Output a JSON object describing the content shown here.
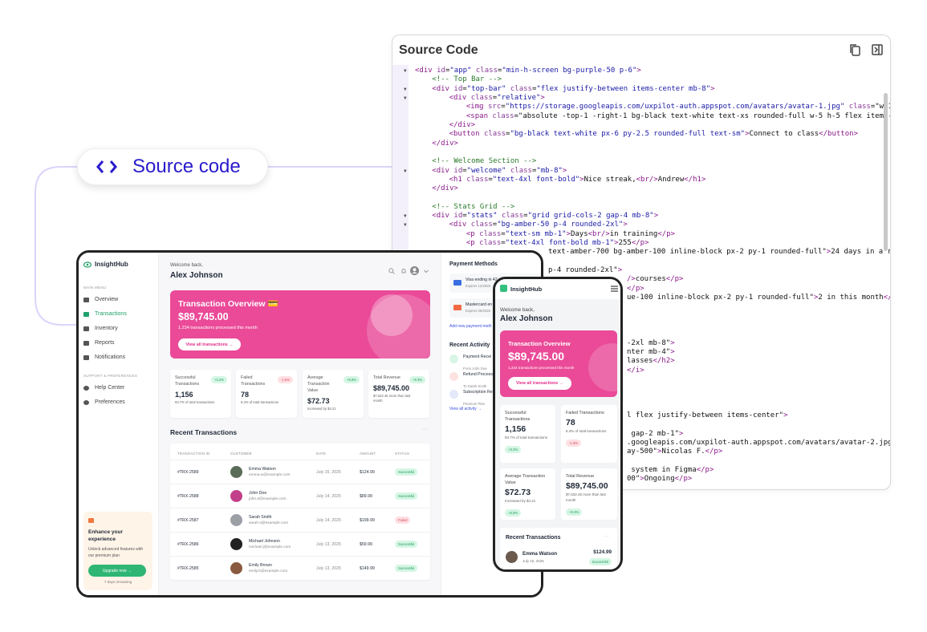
{
  "pill": {
    "label": "Source code",
    "icon": "code-brackets-icon"
  },
  "code_panel": {
    "title": "Source Code",
    "actions": [
      "copy-icon",
      "toggle-panel-icon"
    ],
    "lines": [
      "<div id=\"app\" class=\"min-h-screen bg-purple-50 p-6\">",
      "<!-- Top Bar -->",
      "<div id=\"top-bar\" class=\"flex justify-between items-center mb-8\">",
      "<div class=\"relative\">",
      "<img src=\"https://storage.googleapis.com/uxpilot-auth.appspot.com/avatars/avatar-1.jpg\" class=\"w-1",
      "<span class=\"absolute -top-1 -right-1 bg-black text-white text-xs rounded-full w-5 h-5 flex items-",
      "</div>",
      "<button class=\"bg-black text-white px-6 py-2.5 rounded-full text-sm\">Connect to class</button>",
      "</div>",
      "",
      "<!-- Welcome Section -->",
      "<div id=\"welcome\" class=\"mb-8\">",
      "<h1 class=\"text-4xl font-bold\">Nice streak,<br/>Andrew</h1>",
      "</div>",
      "",
      "<!-- Stats Grid -->",
      "<div id=\"stats\" class=\"grid grid-cols-2 gap-4 mb-8\">",
      "<div class=\"bg-amber-50 p-4 rounded-2xl\">",
      "<p class=\"text-sm mb-1\">Days<br/>in training</p>",
      "<p class=\"text-4xl font-bold mb-1\">255</p>",
      "text-amber-700 bg-amber-100 inline-block px-2 py-1 rounded-full\">24 days in a ro",
      "",
      "p-4 rounded-2xl\">",
      "/>courses</p>",
      "</p>",
      "ue-100 inline-block px-2 py-1 rounded-full\">2 in this month</p",
      "",
      "",
      "",
      "",
      "-2xl mb-8\">",
      "nter mb-4\">",
      "lasses</h2>",
      "</i>",
      "",
      "",
      "",
      "",
      "l flex justify-between items-center\">",
      "",
      " gap-2 mb-1\">",
      ".googleapis.com/uxpilot-auth.appspot.com/avatars/avatar-2.jpg\"",
      "ay-500\">Nicolas F.</p>",
      "",
      " system in Figma</p>",
      "00\">Ongoing</p>"
    ]
  },
  "desktop": {
    "brand": "InsightHub",
    "main_menu_label": "MAIN MENU",
    "nav": [
      "Overview",
      "Transactions",
      "Inventory",
      "Reports",
      "Notifications"
    ],
    "support_label": "SUPPORT & PREFERENCES",
    "support_nav": [
      "Help Center",
      "Preferences"
    ],
    "active_nav": "Transactions",
    "upgrade": {
      "title": "Enhance your experience",
      "text": "Unlock advanced features with our premium plan",
      "button": "Upgrade now →",
      "note": "7 days remaining"
    },
    "welcome": "Welcome back,",
    "user": "Alex Johnson",
    "hero": {
      "title": "Transaction Overview 💳",
      "amount": "$89,745.00",
      "subtitle": "1,234 transactions processed this month",
      "button": "View all transactions →"
    },
    "stats": [
      {
        "label": "Successful Transactions",
        "value": "1,156",
        "sub": "93.7% of total transactions",
        "badge": "+3.2%",
        "tone": "g"
      },
      {
        "label": "Failed Transactions",
        "value": "78",
        "sub": "6.3% of total transactions",
        "badge": "-1.5%",
        "tone": "r"
      },
      {
        "label": "Average Transaction Value",
        "value": "$72.73",
        "sub": "Increased by $4.21",
        "badge": "+5.8%",
        "tone": "g"
      },
      {
        "label": "Total Revenue",
        "value": "$89,745.00",
        "sub": "$7,632.45 more than last month",
        "badge": "+9.3%",
        "tone": "g"
      }
    ],
    "recent_title": "Recent Transactions",
    "more": "···",
    "columns": [
      "TRANSACTION ID",
      "CUSTOMER",
      "DATE",
      "AMOUNT",
      "STATUS"
    ],
    "rows": [
      {
        "id": "#TRX-2589",
        "name": "Emma Watson",
        "email": "emma.w@example.com",
        "date": "July 15, 2025",
        "amount": "$124.99",
        "status": "Successful"
      },
      {
        "id": "#TRX-2588",
        "name": "John Doe",
        "email": "john.d@example.com",
        "date": "July 14, 2025",
        "amount": "$89.99",
        "status": "Successful"
      },
      {
        "id": "#TRX-2587",
        "name": "Sarah Smith",
        "email": "sarah.s@example.com",
        "date": "July 14, 2025",
        "amount": "$199.99",
        "status": "Failed"
      },
      {
        "id": "#TRX-2586",
        "name": "Michael Johnson",
        "email": "michael.j@example.com",
        "date": "July 13, 2025",
        "amount": "$59.99",
        "status": "Successful"
      },
      {
        "id": "#TRX-2585",
        "name": "Emily Brown",
        "email": "emily.b@example.com",
        "date": "July 13, 2025",
        "amount": "$149.99",
        "status": "Successful"
      }
    ],
    "payment_title": "Payment Methods",
    "payments": [
      {
        "name": "Visa ending in 42",
        "expires": "Expires 12/2026"
      },
      {
        "name": "Mastercard en",
        "expires": "Expires 09/2026"
      }
    ],
    "add_payment": "Add new payment meth",
    "activity_title": "Recent Activity",
    "activity": [
      {
        "title": "Payment Recei",
        "sub": "From John Doe"
      },
      {
        "title": "Refund Process",
        "sub": "To Sarah Smith"
      },
      {
        "title": "Subscription Re",
        "sub": "Premium Plan"
      }
    ],
    "view_activity": "View all activity →"
  },
  "mobile": {
    "brand": "InsightHub",
    "welcome": "Welcome back,",
    "user": "Alex Johnson",
    "hero": {
      "title": "Transaction Overview",
      "amount": "$89,745.00",
      "subtitle": "1,234 transactions processed this month",
      "button": "View all transactions →"
    },
    "stats": [
      {
        "label": "Successful Transactions",
        "value": "1,156",
        "sub": "93.7% of total transactions",
        "badge": "+3.2%",
        "tone": "g"
      },
      {
        "label": "Failed Transactions",
        "value": "78",
        "sub": "6.3% of total transactions",
        "badge": "-1.5%",
        "tone": "r"
      },
      {
        "label": "Average Transaction Value",
        "value": "$72.73",
        "sub": "Increased by $4.21",
        "badge": "+5.8%",
        "tone": "g"
      },
      {
        "label": "Total Revenue",
        "value": "$89,745.00",
        "sub": "$7,632.45 more than last month",
        "badge": "+9.3%",
        "tone": "g"
      }
    ],
    "recent_title": "Recent Transactions",
    "more": "···",
    "row": {
      "name": "Emma Watson",
      "date": "July 15, 2025",
      "amount": "$124.99",
      "status": "Successful"
    }
  },
  "colors": {
    "accent": "#2a1bcc",
    "hero": "#ea4a98",
    "success": "#22a06b",
    "connector": "#ddd3fb"
  }
}
